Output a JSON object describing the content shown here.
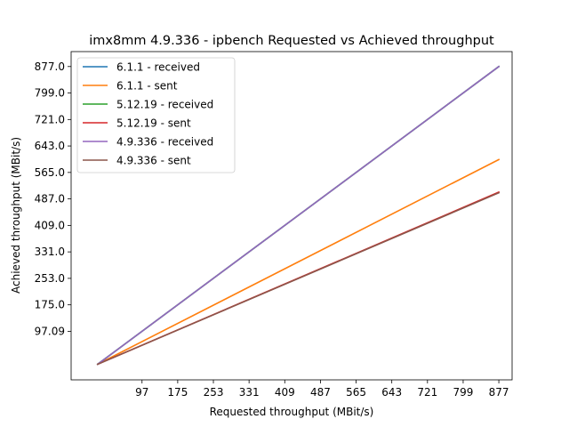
{
  "chart_data": {
    "type": "line",
    "title": "imx8mm 4.9.336 - ipbench Requested vs Achieved throughput",
    "xlabel": "Requested throughput (MBit/s)",
    "ylabel": "Achieved throughput (MBit/s)",
    "x": [
      0,
      877
    ],
    "xticks": [
      97,
      175,
      253,
      331,
      409,
      487,
      565,
      643,
      721,
      799,
      877
    ],
    "xtick_labels": [
      "97",
      "175",
      "253",
      "331",
      "409",
      "487",
      "565",
      "643",
      "721",
      "799",
      "877"
    ],
    "yticks": [
      97.09,
      175.0,
      253.0,
      331.0,
      409.0,
      487.0,
      565.0,
      643.0,
      721.0,
      799.0,
      877.0
    ],
    "ytick_labels": [
      "97.09",
      "175.0",
      "253.0",
      "331.0",
      "409.0",
      "487.0",
      "565.0",
      "643.0",
      "721.0",
      "799.0",
      "877.0"
    ],
    "xlim": [
      -58,
      906
    ],
    "ylim": [
      -46,
      921
    ],
    "grid": false,
    "legend_position": "top-left",
    "series": [
      {
        "name": "6.1.1 - received",
        "color": "#1f77b4",
        "values": [
          0,
          877
        ]
      },
      {
        "name": "6.1.1 - sent",
        "color": "#ff7f0e",
        "values": [
          0,
          603
        ]
      },
      {
        "name": "5.12.19 - received",
        "color": "#2ca02c",
        "values": [
          0,
          877
        ]
      },
      {
        "name": "5.12.19 - sent",
        "color": "#d62728",
        "values": [
          0,
          507
        ]
      },
      {
        "name": "4.9.336 - received",
        "color": "#9467bd",
        "values": [
          0,
          877
        ]
      },
      {
        "name": "4.9.336 - sent",
        "color": "#8c564b",
        "values": [
          0,
          505
        ]
      }
    ]
  }
}
